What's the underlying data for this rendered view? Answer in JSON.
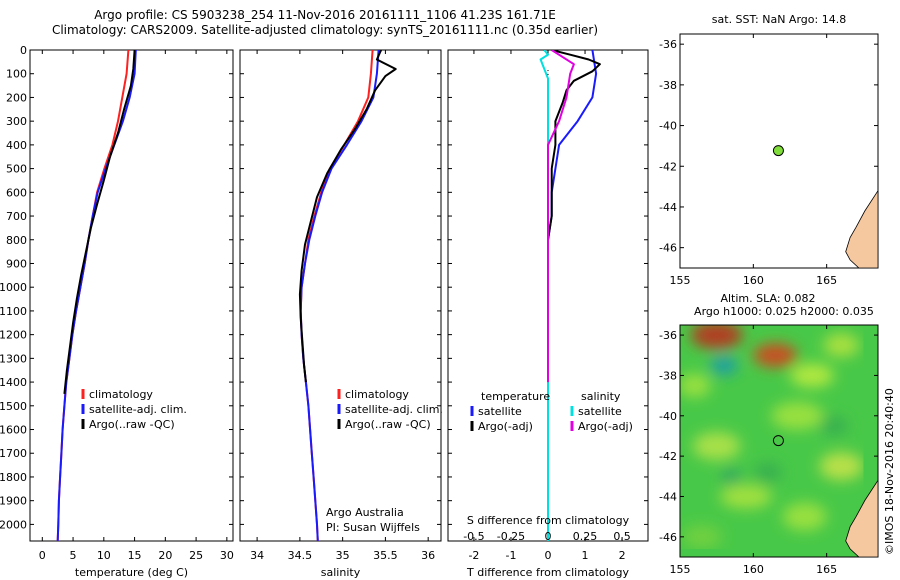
{
  "header": {
    "line1": "Argo profile: CS 5903238_254 11-Nov-2016 20161111_1106 41.23S 161.71E",
    "line2": "Climatology: CARS2009. Satellite-adjusted climatology: synTS_20161111.nc (0.35d earlier)"
  },
  "sst_title": "sat. SST: NaN Argo: 14.8",
  "sla_title": {
    "line1": "Altim. SLA: 0.082",
    "line2": "Argo h1000: 0.025 h2000: 0.035"
  },
  "watermark": "©IMOS 18-Nov-2016 20:40:40",
  "credit": {
    "line1": "Argo Australia",
    "line2": "PI: Susan Wijffels"
  },
  "colors": {
    "climatology": "#ff2020",
    "satellite": "#1a1aff",
    "argo": "#000000",
    "sat_s": "#00e0e0",
    "argo_s": "#e000e0",
    "land": "#f5c8a0",
    "float": "#7fdc3a"
  },
  "chart_data": [
    {
      "type": "line",
      "xlabel": "temperature (deg C)",
      "xlim": [
        -2,
        31
      ],
      "xticks": [
        0,
        5,
        10,
        15,
        20,
        25,
        30
      ],
      "ylim": [
        2070,
        0
      ],
      "yticks": [
        0,
        100,
        200,
        300,
        400,
        500,
        600,
        700,
        800,
        900,
        1000,
        1100,
        1200,
        1300,
        1400,
        1500,
        1600,
        1700,
        1800,
        1900,
        2000
      ],
      "legend": [
        "climatology",
        "satellite-adj. clim.",
        "Argo(..raw -QC)"
      ],
      "series": [
        {
          "name": "climatology",
          "color": "climatology",
          "points": [
            [
              14.0,
              0
            ],
            [
              13.7,
              100
            ],
            [
              13.0,
              200
            ],
            [
              12.3,
              300
            ],
            [
              11.4,
              400
            ],
            [
              10.1,
              500
            ],
            [
              8.9,
              600
            ],
            [
              8.2,
              700
            ],
            [
              7.5,
              800
            ],
            [
              6.9,
              900
            ],
            [
              6.2,
              1000
            ],
            [
              5.5,
              1100
            ],
            [
              4.9,
              1200
            ],
            [
              4.4,
              1300
            ],
            [
              3.9,
              1400
            ],
            [
              3.6,
              1500
            ],
            [
              3.3,
              1600
            ],
            [
              3.1,
              1700
            ],
            [
              2.9,
              1800
            ],
            [
              2.7,
              1900
            ],
            [
              2.6,
              2000
            ],
            [
              2.5,
              2070
            ]
          ]
        },
        {
          "name": "satellite-adj. clim.",
          "color": "satellite",
          "points": [
            [
              15.2,
              0
            ],
            [
              15.0,
              100
            ],
            [
              14.2,
              200
            ],
            [
              13.1,
              300
            ],
            [
              11.7,
              400
            ],
            [
              10.3,
              500
            ],
            [
              9.0,
              600
            ],
            [
              8.2,
              700
            ],
            [
              7.5,
              800
            ],
            [
              6.9,
              900
            ],
            [
              6.2,
              1000
            ],
            [
              5.5,
              1100
            ],
            [
              4.9,
              1200
            ],
            [
              4.4,
              1300
            ],
            [
              3.9,
              1400
            ],
            [
              3.6,
              1500
            ],
            [
              3.3,
              1600
            ],
            [
              3.1,
              1700
            ],
            [
              2.9,
              1800
            ],
            [
              2.7,
              1900
            ],
            [
              2.6,
              2000
            ],
            [
              2.5,
              2070
            ]
          ]
        },
        {
          "name": "Argo(..raw -QC)",
          "color": "argo",
          "points": [
            [
              15.0,
              0
            ],
            [
              14.8,
              80
            ],
            [
              14.4,
              150
            ],
            [
              13.3,
              250
            ],
            [
              12.3,
              350
            ],
            [
              11.0,
              450
            ],
            [
              10.0,
              550
            ],
            [
              8.9,
              650
            ],
            [
              7.9,
              750
            ],
            [
              7.1,
              850
            ],
            [
              6.3,
              950
            ],
            [
              5.6,
              1050
            ],
            [
              5.0,
              1150
            ],
            [
              4.5,
              1250
            ],
            [
              4.0,
              1350
            ],
            [
              3.6,
              1450
            ]
          ]
        }
      ]
    },
    {
      "type": "line",
      "xlabel": "salinity",
      "xlim": [
        33.8,
        36.15
      ],
      "xticks": [
        34,
        34.5,
        35,
        35.5,
        36
      ],
      "ylim": [
        2070,
        0
      ],
      "legend": [
        "climatology",
        "satellite-adj. clim.",
        "Argo(..raw -QC)"
      ],
      "series": [
        {
          "name": "climatology",
          "color": "climatology",
          "points": [
            [
              35.35,
              0
            ],
            [
              35.33,
              100
            ],
            [
              35.3,
              200
            ],
            [
              35.18,
              300
            ],
            [
              35.02,
              400
            ],
            [
              34.85,
              500
            ],
            [
              34.75,
              600
            ],
            [
              34.67,
              700
            ],
            [
              34.6,
              800
            ],
            [
              34.56,
              900
            ],
            [
              34.52,
              1000
            ],
            [
              34.51,
              1100
            ],
            [
              34.52,
              1200
            ],
            [
              34.54,
              1300
            ],
            [
              34.57,
              1400
            ],
            [
              34.6,
              1500
            ],
            [
              34.62,
              1600
            ],
            [
              34.64,
              1700
            ],
            [
              34.66,
              1800
            ],
            [
              34.68,
              1900
            ],
            [
              34.7,
              2000
            ],
            [
              34.71,
              2070
            ]
          ]
        },
        {
          "name": "satellite-adj. clim.",
          "color": "satellite",
          "points": [
            [
              35.42,
              0
            ],
            [
              35.4,
              100
            ],
            [
              35.36,
              200
            ],
            [
              35.22,
              300
            ],
            [
              35.05,
              400
            ],
            [
              34.87,
              500
            ],
            [
              34.76,
              600
            ],
            [
              34.68,
              700
            ],
            [
              34.61,
              800
            ],
            [
              34.56,
              900
            ],
            [
              34.52,
              1000
            ],
            [
              34.51,
              1100
            ],
            [
              34.52,
              1200
            ],
            [
              34.54,
              1300
            ],
            [
              34.57,
              1400
            ],
            [
              34.6,
              1500
            ],
            [
              34.62,
              1600
            ],
            [
              34.64,
              1700
            ],
            [
              34.66,
              1800
            ],
            [
              34.68,
              1900
            ],
            [
              34.7,
              2000
            ],
            [
              34.71,
              2070
            ]
          ]
        },
        {
          "name": "Argo(..raw -QC)",
          "color": "argo",
          "points": [
            [
              35.45,
              0
            ],
            [
              35.4,
              40
            ],
            [
              35.62,
              80
            ],
            [
              35.5,
              110
            ],
            [
              35.38,
              170
            ],
            [
              35.28,
              250
            ],
            [
              35.15,
              330
            ],
            [
              34.98,
              420
            ],
            [
              34.82,
              520
            ],
            [
              34.7,
              620
            ],
            [
              34.63,
              720
            ],
            [
              34.56,
              820
            ],
            [
              34.52,
              930
            ],
            [
              34.5,
              1030
            ],
            [
              34.51,
              1130
            ],
            [
              34.53,
              1230
            ],
            [
              34.55,
              1330
            ],
            [
              34.57,
              1400
            ]
          ]
        }
      ]
    },
    {
      "type": "line",
      "xlabel": "T difference from climatology",
      "xlabel2": "S difference from climatology",
      "xlim": [
        -2.7,
        2.7
      ],
      "xticks": [
        -2,
        -1,
        0,
        1,
        2
      ],
      "xticks2": [
        -0.5,
        -0.25,
        0,
        0.25,
        0.5
      ],
      "ylim": [
        2070,
        0
      ],
      "legend": {
        "temperature": [
          "satellite",
          "Argo(-adj)"
        ],
        "salinity": [
          "satellite",
          "Argo(-adj)"
        ]
      },
      "legend_headers": [
        "temperature",
        "salinity"
      ],
      "series": [
        {
          "name": "satellite",
          "group": "temperature",
          "color": "satellite",
          "points": [
            [
              1.2,
              0
            ],
            [
              1.3,
              100
            ],
            [
              1.2,
              200
            ],
            [
              0.8,
              300
            ],
            [
              0.3,
              400
            ],
            [
              0.2,
              500
            ],
            [
              0.1,
              600
            ],
            [
              0.1,
              700
            ],
            [
              0.0,
              800
            ],
            [
              0.0,
              900
            ],
            [
              0.0,
              1000
            ],
            [
              0.0,
              1200
            ],
            [
              0.0,
              1500
            ],
            [
              0.0,
              2070
            ]
          ]
        },
        {
          "name": "Argo(-adj)",
          "group": "temperature",
          "color": "argo",
          "points": [
            [
              0.1,
              0
            ],
            [
              0.6,
              20
            ],
            [
              1.1,
              40
            ],
            [
              1.4,
              60
            ],
            [
              1.2,
              90
            ],
            [
              0.7,
              130
            ],
            [
              0.5,
              170
            ],
            [
              0.4,
              220
            ],
            [
              0.2,
              300
            ],
            [
              0.2,
              400
            ],
            [
              0.1,
              500
            ],
            [
              0.1,
              600
            ],
            [
              0.1,
              700
            ],
            [
              0.0,
              800
            ],
            [
              0.0,
              900
            ],
            [
              0.0,
              1000
            ],
            [
              0.0,
              1100
            ],
            [
              0.0,
              1200
            ],
            [
              0.0,
              1300
            ],
            [
              0.0,
              1400
            ]
          ]
        },
        {
          "name": "satellite",
          "group": "salinity",
          "color": "sat_s",
          "points": [
            [
              -0.1,
              0
            ],
            [
              0.0,
              20
            ],
            [
              -0.2,
              40
            ],
            [
              0.0,
              120
            ],
            [
              0.0,
              300
            ],
            [
              0.0,
              600
            ],
            [
              0.0,
              900
            ],
            [
              0.0,
              1200
            ],
            [
              0.0,
              1500
            ],
            [
              0.0,
              2070
            ]
          ]
        },
        {
          "name": "Argo(-adj)",
          "group": "salinity",
          "color": "argo_s",
          "points": [
            [
              0.1,
              0
            ],
            [
              0.7,
              60
            ],
            [
              0.6,
              100
            ],
            [
              0.5,
              200
            ],
            [
              0.3,
              300
            ],
            [
              0.0,
              400
            ],
            [
              0.0,
              500
            ],
            [
              0.0,
              600
            ],
            [
              0.0,
              700
            ],
            [
              0.0,
              800
            ],
            [
              0.0,
              900
            ],
            [
              0.0,
              1000
            ],
            [
              0.0,
              1100
            ],
            [
              0.0,
              1200
            ],
            [
              0.0,
              1300
            ],
            [
              0.0,
              1400
            ]
          ]
        }
      ]
    },
    {
      "type": "map",
      "title": "sat. SST: NaN Argo: 14.8",
      "xlim": [
        155,
        168.5
      ],
      "xticks": [
        155,
        160,
        165
      ],
      "ylim": [
        -47,
        -35.5
      ],
      "yticks": [
        -36,
        -38,
        -40,
        -42,
        -44,
        -46
      ],
      "float": {
        "lon": 161.71,
        "lat": -41.23
      }
    },
    {
      "type": "heatmap",
      "title": "Altim. SLA: 0.082",
      "subtitle": "Argo h1000: 0.025 h2000: 0.035",
      "xlim": [
        155,
        168.5
      ],
      "xticks": [
        155,
        160,
        165
      ],
      "ylim": [
        -47,
        -35.5
      ],
      "yticks": [
        -36,
        -38,
        -40,
        -42,
        -44,
        -46
      ],
      "float": {
        "lon": 161.71,
        "lat": -41.23
      }
    }
  ]
}
